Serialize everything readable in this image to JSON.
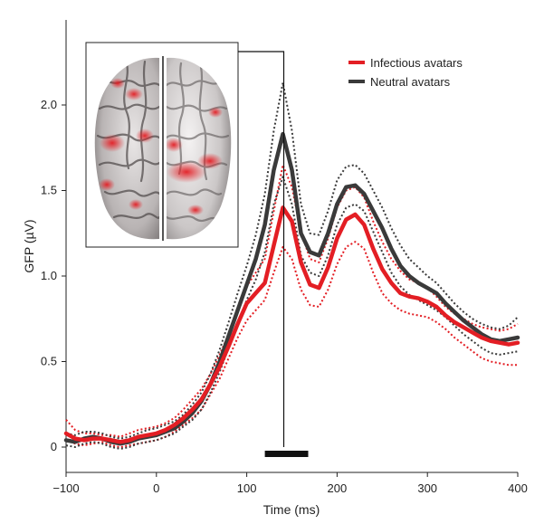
{
  "chart_data": {
    "type": "line",
    "title": "",
    "xlabel": "Time (ms)",
    "ylabel": "GFP (µV)",
    "xlim": [
      -100,
      400
    ],
    "ylim": [
      -0.1,
      2.4
    ],
    "xticks": [
      -100,
      0,
      100,
      200,
      300,
      400
    ],
    "xtick_labels": [
      "−100",
      "0",
      "100",
      "200",
      "300",
      "400"
    ],
    "yticks": [
      0,
      0.5,
      1.0,
      1.5,
      2.0
    ],
    "ytick_labels": [
      "0",
      "0.5",
      "1.0",
      "1.5",
      "2.0"
    ],
    "legend_position": "top-right",
    "series": [
      {
        "name": "Infectious avatars",
        "color": "#e31e24",
        "role": "mean",
        "x": [
          -100,
          -90,
          -80,
          -70,
          -60,
          -50,
          -40,
          -30,
          -20,
          -10,
          0,
          10,
          20,
          30,
          40,
          50,
          60,
          70,
          80,
          90,
          100,
          110,
          120,
          130,
          140,
          150,
          160,
          170,
          180,
          190,
          200,
          210,
          220,
          230,
          240,
          250,
          260,
          270,
          280,
          290,
          300,
          310,
          320,
          330,
          340,
          350,
          360,
          370,
          380,
          390,
          400
        ],
        "y": [
          0.08,
          0.05,
          0.04,
          0.05,
          0.05,
          0.04,
          0.03,
          0.04,
          0.06,
          0.07,
          0.08,
          0.1,
          0.13,
          0.17,
          0.22,
          0.28,
          0.37,
          0.47,
          0.59,
          0.72,
          0.84,
          0.9,
          0.96,
          1.18,
          1.4,
          1.32,
          1.08,
          0.95,
          0.93,
          1.05,
          1.22,
          1.33,
          1.36,
          1.3,
          1.16,
          1.04,
          0.96,
          0.9,
          0.88,
          0.87,
          0.85,
          0.82,
          0.77,
          0.73,
          0.7,
          0.67,
          0.64,
          0.62,
          0.61,
          0.6,
          0.61
        ]
      },
      {
        "name": "Neutral avatars",
        "color": "#3a3a3a",
        "role": "mean",
        "x": [
          -100,
          -90,
          -80,
          -70,
          -60,
          -50,
          -40,
          -30,
          -20,
          -10,
          0,
          10,
          20,
          30,
          40,
          50,
          60,
          70,
          80,
          90,
          100,
          110,
          120,
          130,
          140,
          150,
          160,
          170,
          180,
          190,
          200,
          210,
          220,
          230,
          240,
          250,
          260,
          270,
          280,
          290,
          300,
          310,
          320,
          330,
          340,
          350,
          360,
          370,
          380,
          390,
          400
        ],
        "y": [
          0.04,
          0.03,
          0.05,
          0.06,
          0.05,
          0.03,
          0.02,
          0.03,
          0.05,
          0.06,
          0.07,
          0.09,
          0.11,
          0.15,
          0.2,
          0.27,
          0.37,
          0.5,
          0.65,
          0.8,
          0.95,
          1.1,
          1.3,
          1.62,
          1.83,
          1.62,
          1.25,
          1.14,
          1.12,
          1.25,
          1.42,
          1.52,
          1.53,
          1.48,
          1.38,
          1.28,
          1.16,
          1.06,
          1.0,
          0.96,
          0.93,
          0.9,
          0.84,
          0.79,
          0.74,
          0.7,
          0.66,
          0.63,
          0.62,
          0.63,
          0.64
        ]
      },
      {
        "name": "Infectious avatars upper CI",
        "color": "#e31e24",
        "role": "ci",
        "x": [
          -100,
          -90,
          -80,
          -70,
          -60,
          -50,
          -40,
          -30,
          -20,
          -10,
          0,
          10,
          20,
          30,
          40,
          50,
          60,
          70,
          80,
          90,
          100,
          110,
          120,
          130,
          140,
          150,
          160,
          170,
          180,
          190,
          200,
          210,
          220,
          230,
          240,
          250,
          260,
          270,
          280,
          290,
          300,
          310,
          320,
          330,
          340,
          350,
          360,
          370,
          380,
          390,
          400
        ],
        "y": [
          0.16,
          0.1,
          0.08,
          0.08,
          0.07,
          0.07,
          0.06,
          0.08,
          0.1,
          0.11,
          0.12,
          0.14,
          0.17,
          0.22,
          0.28,
          0.34,
          0.43,
          0.54,
          0.66,
          0.8,
          0.94,
          1.02,
          1.1,
          1.38,
          1.65,
          1.52,
          1.26,
          1.1,
          1.08,
          1.22,
          1.4,
          1.5,
          1.52,
          1.46,
          1.32,
          1.2,
          1.1,
          1.03,
          0.98,
          0.96,
          0.93,
          0.88,
          0.82,
          0.78,
          0.75,
          0.72,
          0.7,
          0.69,
          0.68,
          0.69,
          0.72
        ]
      },
      {
        "name": "Infectious avatars lower CI",
        "color": "#e31e24",
        "role": "ci",
        "x": [
          -100,
          -90,
          -80,
          -70,
          -60,
          -50,
          -40,
          -30,
          -20,
          -10,
          0,
          10,
          20,
          30,
          40,
          50,
          60,
          70,
          80,
          90,
          100,
          110,
          120,
          130,
          140,
          150,
          160,
          170,
          180,
          190,
          200,
          210,
          220,
          230,
          240,
          250,
          260,
          270,
          280,
          290,
          300,
          310,
          320,
          330,
          340,
          350,
          360,
          370,
          380,
          390,
          400
        ],
        "y": [
          0.04,
          0.02,
          0.01,
          0.02,
          0.03,
          0.01,
          0.0,
          0.01,
          0.02,
          0.03,
          0.04,
          0.06,
          0.09,
          0.13,
          0.17,
          0.22,
          0.31,
          0.4,
          0.52,
          0.64,
          0.74,
          0.8,
          0.86,
          1.02,
          1.17,
          1.1,
          0.92,
          0.83,
          0.82,
          0.92,
          1.07,
          1.17,
          1.2,
          1.16,
          1.02,
          0.9,
          0.84,
          0.8,
          0.78,
          0.77,
          0.76,
          0.73,
          0.69,
          0.64,
          0.6,
          0.56,
          0.52,
          0.5,
          0.49,
          0.48,
          0.48
        ]
      },
      {
        "name": "Neutral avatars upper CI",
        "color": "#3a3a3a",
        "role": "ci",
        "x": [
          -100,
          -90,
          -80,
          -70,
          -60,
          -50,
          -40,
          -30,
          -20,
          -10,
          0,
          10,
          20,
          30,
          40,
          50,
          60,
          70,
          80,
          90,
          100,
          110,
          120,
          130,
          140,
          150,
          160,
          170,
          180,
          190,
          200,
          210,
          220,
          230,
          240,
          250,
          260,
          270,
          280,
          290,
          300,
          310,
          320,
          330,
          340,
          350,
          360,
          370,
          380,
          390,
          400
        ],
        "y": [
          0.08,
          0.07,
          0.09,
          0.09,
          0.08,
          0.06,
          0.05,
          0.06,
          0.08,
          0.1,
          0.11,
          0.13,
          0.15,
          0.19,
          0.25,
          0.32,
          0.43,
          0.57,
          0.73,
          0.9,
          1.06,
          1.24,
          1.48,
          1.85,
          2.13,
          1.85,
          1.42,
          1.25,
          1.24,
          1.38,
          1.56,
          1.64,
          1.65,
          1.6,
          1.5,
          1.4,
          1.28,
          1.18,
          1.1,
          1.05,
          1.0,
          0.96,
          0.9,
          0.84,
          0.79,
          0.75,
          0.72,
          0.7,
          0.69,
          0.71,
          0.76
        ]
      },
      {
        "name": "Neutral avatars lower CI",
        "color": "#3a3a3a",
        "role": "ci",
        "x": [
          -100,
          -90,
          -80,
          -70,
          -60,
          -50,
          -40,
          -30,
          -20,
          -10,
          0,
          10,
          20,
          30,
          40,
          50,
          60,
          70,
          80,
          90,
          100,
          110,
          120,
          130,
          140,
          150,
          160,
          170,
          180,
          190,
          200,
          210,
          220,
          230,
          240,
          250,
          260,
          270,
          280,
          290,
          300,
          310,
          320,
          330,
          340,
          350,
          360,
          370,
          380,
          390,
          400
        ],
        "y": [
          0.01,
          0.0,
          0.02,
          0.03,
          0.02,
          0.0,
          -0.01,
          0.0,
          0.02,
          0.03,
          0.04,
          0.06,
          0.08,
          0.12,
          0.16,
          0.22,
          0.32,
          0.44,
          0.58,
          0.72,
          0.86,
          0.98,
          1.14,
          1.42,
          1.58,
          1.42,
          1.12,
          1.02,
          1.0,
          1.12,
          1.3,
          1.4,
          1.42,
          1.38,
          1.26,
          1.14,
          1.02,
          0.94,
          0.89,
          0.86,
          0.83,
          0.8,
          0.76,
          0.71,
          0.66,
          0.62,
          0.58,
          0.55,
          0.54,
          0.55,
          0.56
        ]
      }
    ],
    "annotations": [
      {
        "type": "vertical-line",
        "x": 141,
        "description": "marker linking peak to inset"
      },
      {
        "type": "time-window-bar",
        "x_start": 120,
        "x_end": 168,
        "y": 0
      }
    ]
  }
}
